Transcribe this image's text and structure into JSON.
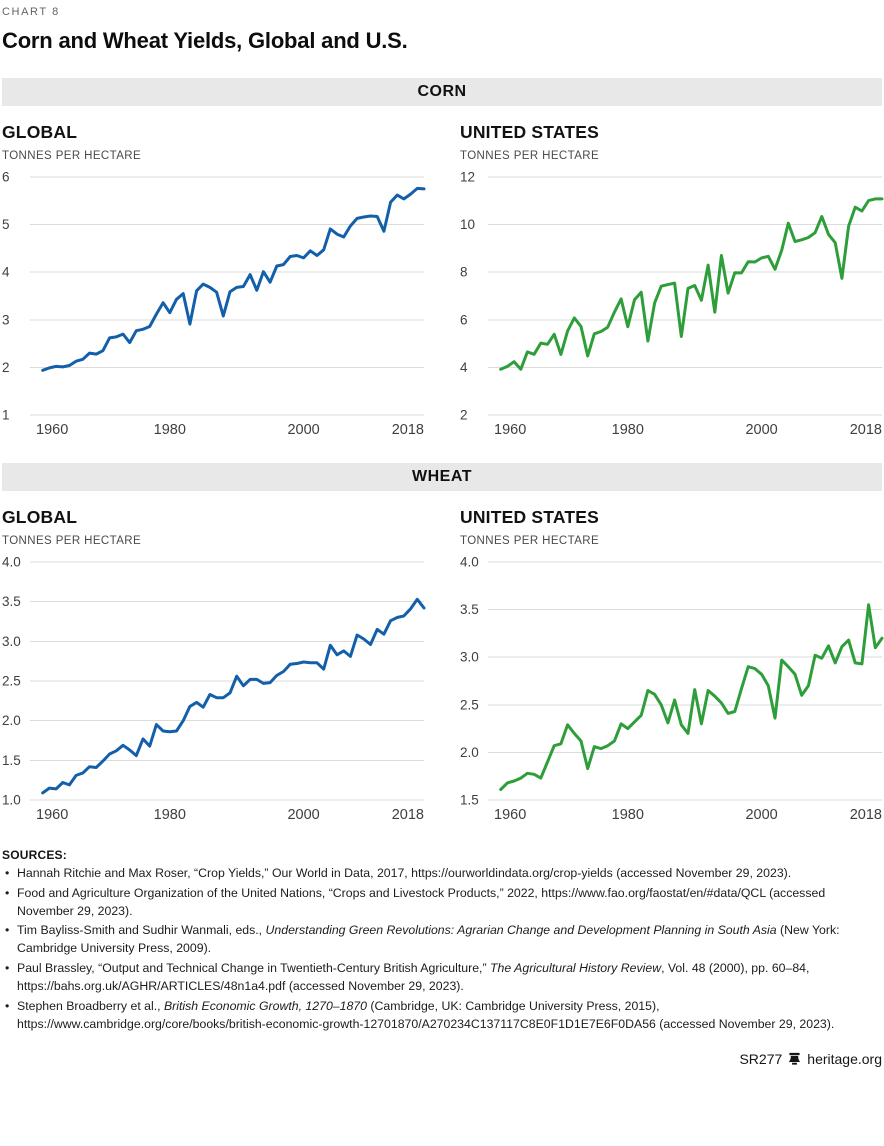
{
  "page": {
    "chart_number": "CHART 8",
    "title": "Corn and Wheat Yields, Global and U.S."
  },
  "sections": {
    "corn": {
      "band_label": "CORN"
    },
    "wheat": {
      "band_label": "WHEAT"
    }
  },
  "colors": {
    "global_line_blue": "#135FAA",
    "us_line_green": "#2E9E3A",
    "grid": "#DBDBDB",
    "band_bg": "#E8E8E8"
  },
  "chart_data": [
    {
      "id": "corn-global",
      "type": "line",
      "section": "CORN",
      "title": "GLOBAL",
      "unit_label": "TONNES PER HECTARE",
      "line_color": "#135FAA",
      "xlim": [
        1960,
        2018
      ],
      "xticks": [
        1960,
        1980,
        2000,
        2018
      ],
      "ylim": [
        1,
        6
      ],
      "yticks": [
        1,
        2,
        3,
        4,
        5,
        6
      ],
      "ytick_labels": [
        "1",
        "2",
        "3",
        "4",
        "5",
        "6"
      ],
      "grid": true,
      "x_start": 1961,
      "values": [
        1.94,
        1.99,
        2.02,
        2.01,
        2.04,
        2.13,
        2.17,
        2.3,
        2.28,
        2.35,
        2.62,
        2.64,
        2.7,
        2.52,
        2.77,
        2.8,
        2.86,
        3.12,
        3.36,
        3.15,
        3.43,
        3.55,
        2.91,
        3.61,
        3.75,
        3.68,
        3.58,
        3.08,
        3.59,
        3.68,
        3.7,
        3.95,
        3.62,
        4.01,
        3.79,
        4.13,
        4.16,
        4.33,
        4.35,
        4.3,
        4.45,
        4.35,
        4.47,
        4.91,
        4.8,
        4.74,
        4.97,
        5.13,
        5.16,
        5.18,
        5.17,
        4.86,
        5.47,
        5.62,
        5.54,
        5.64,
        5.76,
        5.75
      ]
    },
    {
      "id": "corn-us",
      "type": "line",
      "section": "CORN",
      "title": "UNITED STATES",
      "unit_label": "TONNES PER HECTARE",
      "line_color": "#2E9E3A",
      "xlim": [
        1960,
        2018
      ],
      "xticks": [
        1960,
        1980,
        2000,
        2018
      ],
      "ylim": [
        2,
        12
      ],
      "yticks": [
        2,
        4,
        6,
        8,
        10,
        12
      ],
      "ytick_labels": [
        "2",
        "4",
        "6",
        "8",
        "10",
        "12"
      ],
      "grid": true,
      "x_start": 1961,
      "values": [
        3.92,
        4.04,
        4.24,
        3.92,
        4.65,
        4.55,
        5.02,
        4.97,
        5.39,
        4.54,
        5.53,
        6.08,
        5.72,
        4.48,
        5.41,
        5.51,
        5.69,
        6.32,
        6.88,
        5.71,
        6.84,
        7.16,
        5.11,
        6.7,
        7.41,
        7.48,
        7.54,
        5.3,
        7.32,
        7.44,
        6.82,
        8.3,
        6.32,
        8.7,
        7.12,
        7.98,
        7.97,
        8.44,
        8.43,
        8.6,
        8.67,
        8.12,
        8.92,
        10.06,
        9.29,
        9.36,
        9.46,
        9.66,
        10.34,
        9.59,
        9.24,
        7.74,
        9.93,
        10.73,
        10.57,
        11.01,
        11.08,
        11.08
      ]
    },
    {
      "id": "wheat-global",
      "type": "line",
      "section": "WHEAT",
      "title": "GLOBAL",
      "unit_label": "TONNES PER HECTARE",
      "line_color": "#135FAA",
      "xlim": [
        1960,
        2018
      ],
      "xticks": [
        1960,
        1980,
        2000,
        2018
      ],
      "ylim": [
        1.0,
        4.0
      ],
      "yticks": [
        1.0,
        1.5,
        2.0,
        2.5,
        3.0,
        3.5,
        4.0
      ],
      "ytick_labels": [
        "1.0",
        "1.5",
        "2.0",
        "2.5",
        "3.0",
        "3.5",
        "4.0"
      ],
      "grid": true,
      "x_start": 1961,
      "values": [
        1.09,
        1.15,
        1.14,
        1.22,
        1.19,
        1.31,
        1.34,
        1.42,
        1.41,
        1.49,
        1.58,
        1.62,
        1.69,
        1.63,
        1.56,
        1.77,
        1.68,
        1.95,
        1.87,
        1.86,
        1.87,
        2.0,
        2.18,
        2.23,
        2.17,
        2.33,
        2.29,
        2.29,
        2.35,
        2.56,
        2.44,
        2.52,
        2.52,
        2.47,
        2.48,
        2.57,
        2.62,
        2.71,
        2.72,
        2.74,
        2.73,
        2.73,
        2.65,
        2.95,
        2.83,
        2.88,
        2.81,
        3.08,
        3.03,
        2.96,
        3.15,
        3.09,
        3.26,
        3.3,
        3.32,
        3.41,
        3.53,
        3.42
      ]
    },
    {
      "id": "wheat-us",
      "type": "line",
      "section": "WHEAT",
      "title": "UNITED STATES",
      "unit_label": "TONNES PER HECTARE",
      "line_color": "#2E9E3A",
      "xlim": [
        1960,
        2018
      ],
      "xticks": [
        1960,
        1980,
        2000,
        2018
      ],
      "ylim": [
        1.5,
        4.0
      ],
      "yticks": [
        1.5,
        2.0,
        2.5,
        3.0,
        3.5,
        4.0
      ],
      "ytick_labels": [
        "1.5",
        "2.0",
        "2.5",
        "3.0",
        "3.5",
        "4.0"
      ],
      "grid": true,
      "x_start": 1961,
      "values": [
        1.61,
        1.68,
        1.7,
        1.73,
        1.78,
        1.77,
        1.73,
        1.9,
        2.07,
        2.09,
        2.29,
        2.2,
        2.12,
        1.83,
        2.06,
        2.04,
        2.07,
        2.12,
        2.3,
        2.25,
        2.32,
        2.39,
        2.65,
        2.61,
        2.5,
        2.31,
        2.55,
        2.29,
        2.2,
        2.66,
        2.3,
        2.65,
        2.59,
        2.52,
        2.41,
        2.43,
        2.67,
        2.9,
        2.88,
        2.82,
        2.7,
        2.36,
        2.97,
        2.9,
        2.82,
        2.6,
        2.7,
        3.02,
        2.99,
        3.12,
        2.94,
        3.11,
        3.18,
        2.94,
        2.93,
        3.55,
        3.1,
        3.2
      ]
    }
  ],
  "sources": {
    "heading": "SOURCES:",
    "items": [
      [
        {
          "t": "Hannah Ritchie and Max Roser, “Crop Yields,” Our World in Data, 2017, https://ourworldindata.org/crop-yields (accessed November 29, 2023).",
          "i": false
        }
      ],
      [
        {
          "t": "Food and Agriculture Organization of the United Nations, “Crops and Livestock Products,” 2022, https://www.fao.org/faostat/en/#data/QCL (accessed November 29, 2023).",
          "i": false
        }
      ],
      [
        {
          "t": "Tim Bayliss-Smith and Sudhir Wanmali, eds., ",
          "i": false
        },
        {
          "t": "Understanding Green Revolutions: Agrarian Change and Development Planning in South Asia",
          "i": true
        },
        {
          "t": " (New York: Cambridge University Press, 2009).",
          "i": false
        }
      ],
      [
        {
          "t": "Paul Brassley, “Output and Technical Change in Twentieth-Century British Agriculture,” ",
          "i": false
        },
        {
          "t": "The Agricultural History Review",
          "i": true
        },
        {
          "t": ", Vol. 48 (2000), pp. 60–84, https://bahs.org.uk/AGHR/ARTICLES/48n1a4.pdf (accessed November 29, 2023).",
          "i": false
        }
      ],
      [
        {
          "t": "Stephen Broadberry et al., ",
          "i": false
        },
        {
          "t": "British Economic Growth, 1270–1870",
          "i": true
        },
        {
          "t": " (Cambridge, UK: Cambridge University Press, 2015), https://www.cambridge.org/core/books/british-economic-growth-12701870/A270234C137117C8E0F1D1E7E6F0DA56 (accessed November 29, 2023).",
          "i": false
        }
      ]
    ]
  },
  "footer": {
    "report_id": "SR277",
    "site": "heritage.org"
  }
}
